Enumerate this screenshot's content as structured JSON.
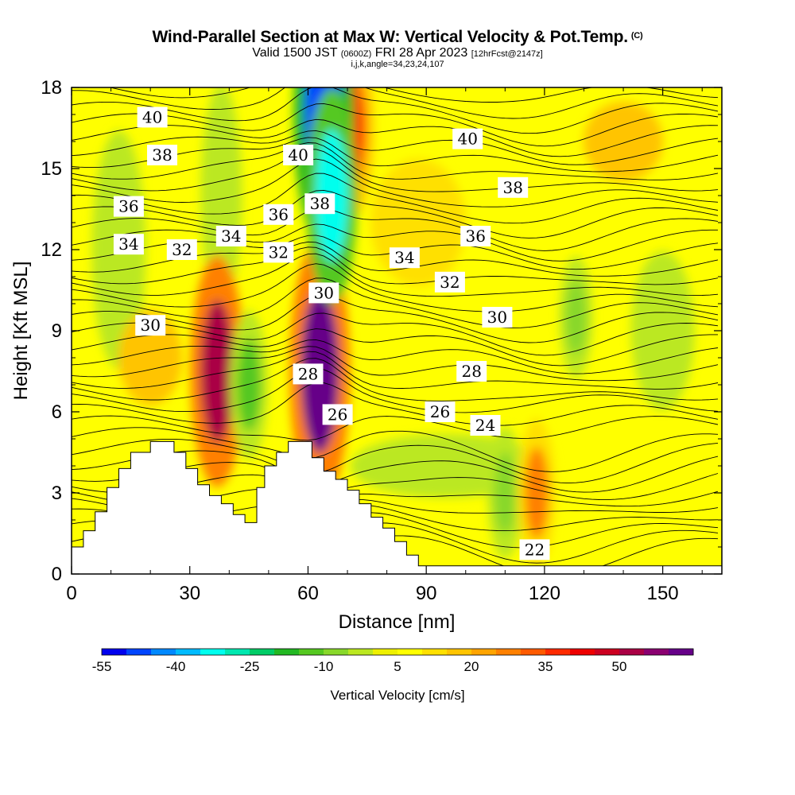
{
  "header": {
    "title": "Wind-Parallel Section at Max W: Vertical Velocity & Pot.Temp.",
    "title_mark": "(C)",
    "valid": "Valid 1500 JST",
    "valid_utc": "(0600Z)",
    "valid_date": "FRI 28 Apr 2023",
    "forecast": "[12hrFcst@2147z]",
    "indices": "i,j,k,angle=34,23,24,107"
  },
  "chart_data": {
    "type": "heatmap",
    "xlabel": "Distance [nm]",
    "ylabel": "Height [Kft MSL]",
    "xlim": [
      0,
      165
    ],
    "ylim": [
      0,
      18
    ],
    "x_ticks": [
      "0",
      "30",
      "60",
      "90",
      "120",
      "150"
    ],
    "y_ticks": [
      "0",
      "3",
      "6",
      "9",
      "12",
      "15",
      "18"
    ],
    "grid": false,
    "colorbar": {
      "title": "Vertical Velocity [cm/s]",
      "tick_labels": [
        "-55",
        "-40",
        "-25",
        "-10",
        "5",
        "20",
        "35",
        "50"
      ],
      "min": -60,
      "max": 60,
      "colors": [
        "#0000ee",
        "#0044ff",
        "#0088ff",
        "#00bbff",
        "#00ffee",
        "#00e8b0",
        "#00cc66",
        "#22b822",
        "#55c820",
        "#88d82a",
        "#bbe820",
        "#eef000",
        "#ffff00",
        "#ffe000",
        "#ffc400",
        "#ffa400",
        "#ff8000",
        "#ff5a00",
        "#ff2a00",
        "#ee0000",
        "#cc0020",
        "#aa0044",
        "#8a0070",
        "#660088"
      ]
    },
    "terrain_kft": [
      [
        0,
        1
      ],
      [
        3,
        1
      ],
      [
        3,
        1.6
      ],
      [
        6,
        1.6
      ],
      [
        6,
        2.3
      ],
      [
        9,
        2.3
      ],
      [
        9,
        3.2
      ],
      [
        12,
        3.2
      ],
      [
        12,
        3.9
      ],
      [
        15,
        3.9
      ],
      [
        15,
        4.5
      ],
      [
        20,
        4.5
      ],
      [
        20,
        4.9
      ],
      [
        26,
        4.9
      ],
      [
        26,
        4.5
      ],
      [
        29,
        4.5
      ],
      [
        29,
        3.9
      ],
      [
        32,
        3.9
      ],
      [
        32,
        3.3
      ],
      [
        35,
        3.3
      ],
      [
        35,
        2.9
      ],
      [
        38,
        2.9
      ],
      [
        38,
        2.6
      ],
      [
        41,
        2.6
      ],
      [
        41,
        2.2
      ],
      [
        44,
        2.2
      ],
      [
        44,
        1.9
      ],
      [
        47,
        1.9
      ],
      [
        47,
        3.2
      ],
      [
        49,
        3.2
      ],
      [
        49,
        4
      ],
      [
        52,
        4
      ],
      [
        52,
        4.5
      ],
      [
        55,
        4.5
      ],
      [
        55,
        4.9
      ],
      [
        61,
        4.9
      ],
      [
        61,
        4.3
      ],
      [
        64,
        4.3
      ],
      [
        64,
        3.8
      ],
      [
        67,
        3.8
      ],
      [
        67,
        3.5
      ],
      [
        70,
        3.5
      ],
      [
        70,
        3.1
      ],
      [
        73,
        3.1
      ],
      [
        73,
        2.6
      ],
      [
        76,
        2.6
      ],
      [
        76,
        2.1
      ],
      [
        79,
        2.1
      ],
      [
        79,
        1.7
      ],
      [
        82,
        1.7
      ],
      [
        82,
        1.2
      ],
      [
        85,
        1.2
      ],
      [
        85,
        0.7
      ],
      [
        88,
        0.7
      ],
      [
        88,
        0.3
      ],
      [
        165,
        0.3
      ]
    ],
    "vertical_velocity_field": [
      {
        "x": 37,
        "y": 7.5,
        "w": 45,
        "note": "strong updraft"
      },
      {
        "x": 63,
        "y": 7.5,
        "w": 55,
        "note": "strongest updraft"
      },
      {
        "x": 71,
        "y": 16.5,
        "w": 30,
        "note": "upper updraft"
      },
      {
        "x": 64,
        "y": 17,
        "w": -55,
        "note": "strongest downdraft"
      },
      {
        "x": 66,
        "y": 14,
        "w": -40,
        "note": "downdraft"
      },
      {
        "x": 45,
        "y": 7,
        "w": -20,
        "note": "downdraft"
      },
      {
        "x": 110,
        "y": 3,
        "w": -15,
        "note": "downdraft"
      },
      {
        "x": 118,
        "y": 3,
        "w": 20,
        "note": "updraft"
      },
      {
        "x": 128,
        "y": 9.5,
        "w": -12,
        "note": "downdraft band"
      }
    ],
    "potential_temperature_contours": {
      "levels": [
        22,
        24,
        26,
        28,
        30,
        32,
        34,
        36,
        38,
        40
      ],
      "labels": [
        {
          "text": "40",
          "x": 20.5,
          "y": 16.9
        },
        {
          "text": "38",
          "x": 23,
          "y": 15.5
        },
        {
          "text": "36",
          "x": 14.5,
          "y": 13.6
        },
        {
          "text": "34",
          "x": 14.5,
          "y": 12.2
        },
        {
          "text": "32",
          "x": 28,
          "y": 12
        },
        {
          "text": "34",
          "x": 40.5,
          "y": 12.5
        },
        {
          "text": "36",
          "x": 52.5,
          "y": 13.3
        },
        {
          "text": "32",
          "x": 52.5,
          "y": 11.9
        },
        {
          "text": "40",
          "x": 57.5,
          "y": 15.5
        },
        {
          "text": "38",
          "x": 63,
          "y": 13.7
        },
        {
          "text": "30",
          "x": 64,
          "y": 10.4
        },
        {
          "text": "28",
          "x": 60,
          "y": 7.4
        },
        {
          "text": "26",
          "x": 67.5,
          "y": 5.9
        },
        {
          "text": "34",
          "x": 84.5,
          "y": 11.7
        },
        {
          "text": "32",
          "x": 96,
          "y": 10.8
        },
        {
          "text": "26",
          "x": 93.5,
          "y": 6
        },
        {
          "text": "28",
          "x": 101.5,
          "y": 7.5
        },
        {
          "text": "24",
          "x": 105,
          "y": 5.5
        },
        {
          "text": "30",
          "x": 108,
          "y": 9.5
        },
        {
          "text": "36",
          "x": 102.5,
          "y": 12.5
        },
        {
          "text": "38",
          "x": 112,
          "y": 14.3
        },
        {
          "text": "40",
          "x": 100.5,
          "y": 16.1
        },
        {
          "text": "22",
          "x": 117.5,
          "y": 0.9
        },
        {
          "text": "30",
          "x": 20,
          "y": 9.2
        }
      ]
    }
  }
}
